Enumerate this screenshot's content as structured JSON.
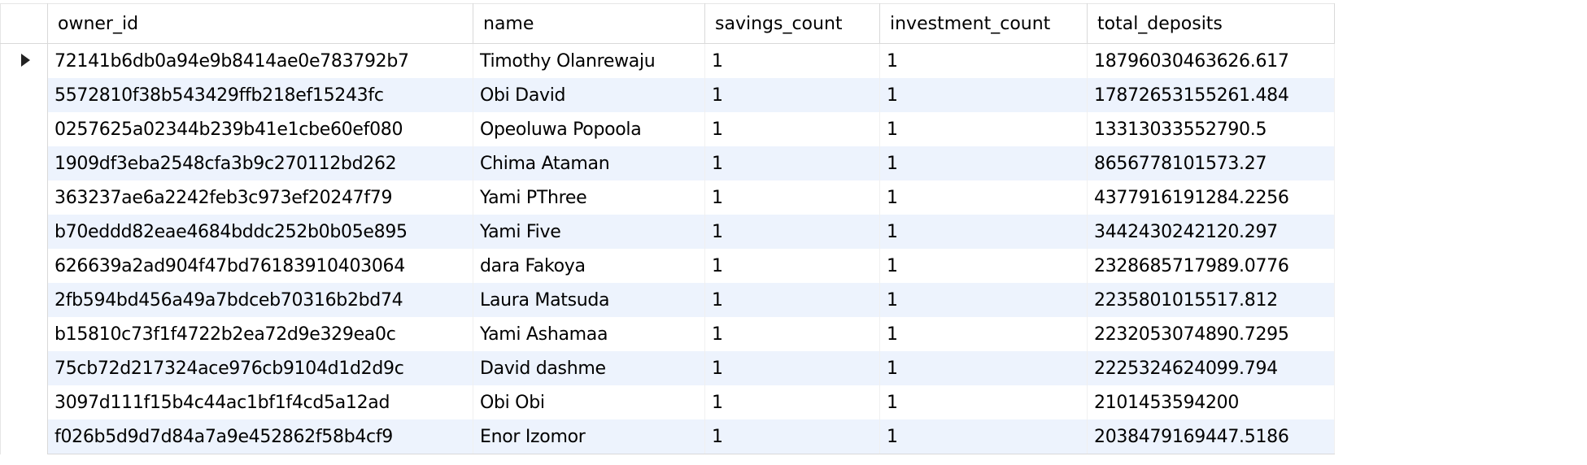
{
  "grid": {
    "columns": [
      {
        "key": "owner_id",
        "label": "owner_id"
      },
      {
        "key": "name",
        "label": "name"
      },
      {
        "key": "savings_count",
        "label": "savings_count"
      },
      {
        "key": "investment_count",
        "label": "investment_count"
      },
      {
        "key": "total_deposits",
        "label": "total_deposits"
      }
    ],
    "current_row_marker": "row-pointer-icon",
    "rows": [
      {
        "owner_id": "72141b6db0a94e9b8414ae0e783792b7",
        "name": "Timothy Olanrewaju",
        "savings_count": "1",
        "investment_count": "1",
        "total_deposits": "18796030463626.617"
      },
      {
        "owner_id": "5572810f38b543429ffb218ef15243fc",
        "name": "Obi David",
        "savings_count": "1",
        "investment_count": "1",
        "total_deposits": "17872653155261.484"
      },
      {
        "owner_id": "0257625a02344b239b41e1cbe60ef080",
        "name": "Opeoluwa Popoola",
        "savings_count": "1",
        "investment_count": "1",
        "total_deposits": "13313033552790.5"
      },
      {
        "owner_id": "1909df3eba2548cfa3b9c270112bd262",
        "name": "Chima Ataman",
        "savings_count": "1",
        "investment_count": "1",
        "total_deposits": "8656778101573.27"
      },
      {
        "owner_id": "363237ae6a2242feb3c973ef20247f79",
        "name": "Yami PThree",
        "savings_count": "1",
        "investment_count": "1",
        "total_deposits": "4377916191284.2256"
      },
      {
        "owner_id": "b70eddd82eae4684bddc252b0b05e895",
        "name": "Yami Five",
        "savings_count": "1",
        "investment_count": "1",
        "total_deposits": "3442430242120.297"
      },
      {
        "owner_id": "626639a2ad904f47bd76183910403064",
        "name": "dara Fakoya",
        "savings_count": "1",
        "investment_count": "1",
        "total_deposits": "2328685717989.0776"
      },
      {
        "owner_id": "2fb594bd456a49a7bdceb70316b2bd74",
        "name": "Laura Matsuda",
        "savings_count": "1",
        "investment_count": "1",
        "total_deposits": "2235801015517.812"
      },
      {
        "owner_id": "b15810c73f1f4722b2ea72d9e329ea0c",
        "name": "Yami Ashamaa",
        "savings_count": "1",
        "investment_count": "1",
        "total_deposits": "2232053074890.7295"
      },
      {
        "owner_id": "75cb72d217324ace976cb9104d1d2d9c",
        "name": "David dashme",
        "savings_count": "1",
        "investment_count": "1",
        "total_deposits": "2225324624099.794"
      },
      {
        "owner_id": "3097d111f15b4c44ac1bf1f4cd5a12ad",
        "name": "Obi Obi",
        "savings_count": "1",
        "investment_count": "1",
        "total_deposits": "2101453594200"
      },
      {
        "owner_id": "f026b5d9d7d84a7a9e452862f58b4cf9",
        "name": "Enor Izomor",
        "savings_count": "1",
        "investment_count": "1",
        "total_deposits": "2038479169447.5186"
      }
    ]
  }
}
